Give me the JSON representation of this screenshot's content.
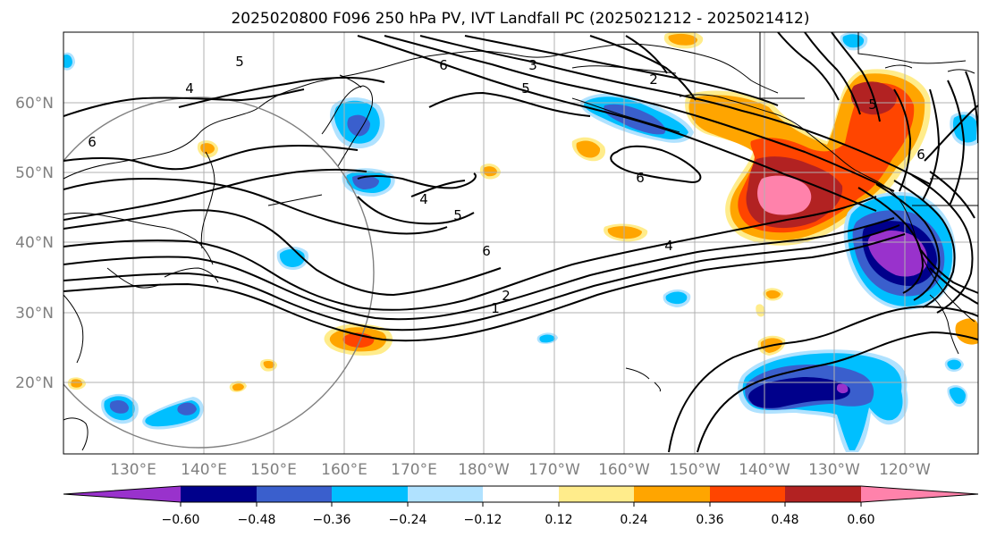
{
  "title": "2025020800 F096 250 hPa PV, IVT Landfall PC (2025021212 - 2025021412)",
  "lat_labels": [
    "60°N",
    "50°N",
    "40°N",
    "30°N",
    "20°N"
  ],
  "lon_labels": [
    "130°E",
    "140°E",
    "150°E",
    "160°E",
    "170°E",
    "180°W",
    "170°W",
    "160°W",
    "150°W",
    "140°W",
    "130°W",
    "120°W"
  ],
  "contour_labels": [
    "5",
    "4",
    "6",
    "6",
    "5",
    "2",
    "6",
    "5",
    "6",
    "4",
    "1",
    "2",
    "5",
    "6",
    "4",
    "3"
  ],
  "colorbar": {
    "tick_labels": [
      "−0.60",
      "−0.48",
      "−0.36",
      "−0.24",
      "−0.12",
      "0.12",
      "0.24",
      "0.36",
      "0.48",
      "0.60"
    ],
    "colors": [
      "#9932cc",
      "#00008b",
      "#3a5fcd",
      "#00bfff",
      "#b0e2ff",
      "#ffffff",
      "#ffec8b",
      "#ffa500",
      "#ff4500",
      "#b22222",
      "#ff82ab"
    ]
  },
  "colors": {
    "background": "#ffffff",
    "gridlines": "#b0b0b0",
    "contours": "#000000",
    "coastlines": "#000000",
    "circle": "#808080"
  }
}
